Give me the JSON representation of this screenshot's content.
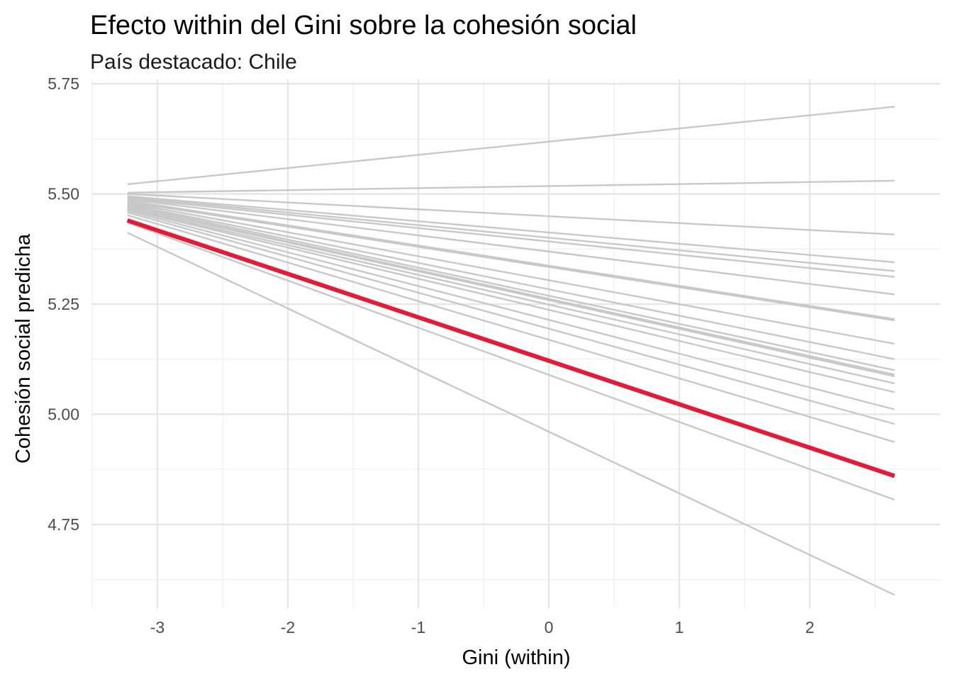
{
  "chart_data": {
    "type": "line",
    "title": "Efecto within del Gini sobre la cohesión social",
    "subtitle": "País destacado: Chile",
    "xlabel": "Gini (within)",
    "ylabel": "Cohesión social predicha",
    "xlim": [
      -3.5,
      3.0
    ],
    "ylim": [
      4.56,
      5.76
    ],
    "x_ticks": [
      -3,
      -2,
      -1,
      0,
      1,
      2
    ],
    "x_tick_labels": [
      "-3",
      "-2",
      "-1",
      "0",
      "1",
      "2"
    ],
    "y_ticks": [
      4.75,
      5.0,
      5.25,
      5.5,
      5.75
    ],
    "y_tick_labels": [
      "4.75",
      "5.00",
      "5.25",
      "5.50",
      "5.75"
    ],
    "grid": true,
    "x_range": [
      -3.23,
      2.65
    ],
    "colors": {
      "background_lines": "#c8c8c8",
      "highlight": "#e31a38"
    },
    "series": [
      {
        "values": [
          5.522,
          5.698
        ]
      },
      {
        "values": [
          5.503,
          5.53
        ]
      },
      {
        "values": [
          5.5,
          5.408
        ]
      },
      {
        "values": [
          5.495,
          5.345
        ]
      },
      {
        "values": [
          5.493,
          5.325
        ]
      },
      {
        "values": [
          5.49,
          5.312
        ]
      },
      {
        "values": [
          5.488,
          5.272
        ]
      },
      {
        "values": [
          5.485,
          5.216
        ]
      },
      {
        "values": [
          5.482,
          5.213
        ]
      },
      {
        "values": [
          5.48,
          5.16
        ]
      },
      {
        "values": [
          5.477,
          5.125
        ]
      },
      {
        "values": [
          5.475,
          5.1
        ]
      },
      {
        "values": [
          5.472,
          5.09
        ]
      },
      {
        "values": [
          5.47,
          5.086
        ]
      },
      {
        "values": [
          5.467,
          5.07
        ]
      },
      {
        "values": [
          5.465,
          5.05
        ]
      },
      {
        "values": [
          5.462,
          5.011
        ]
      },
      {
        "values": [
          5.458,
          4.978
        ]
      },
      {
        "values": [
          5.452,
          4.937
        ]
      },
      {
        "values": [
          5.435,
          4.806
        ]
      },
      {
        "values": [
          5.412,
          4.59
        ]
      },
      {
        "name": "Chile",
        "values": [
          5.44,
          4.86
        ],
        "highlight": true
      }
    ]
  }
}
